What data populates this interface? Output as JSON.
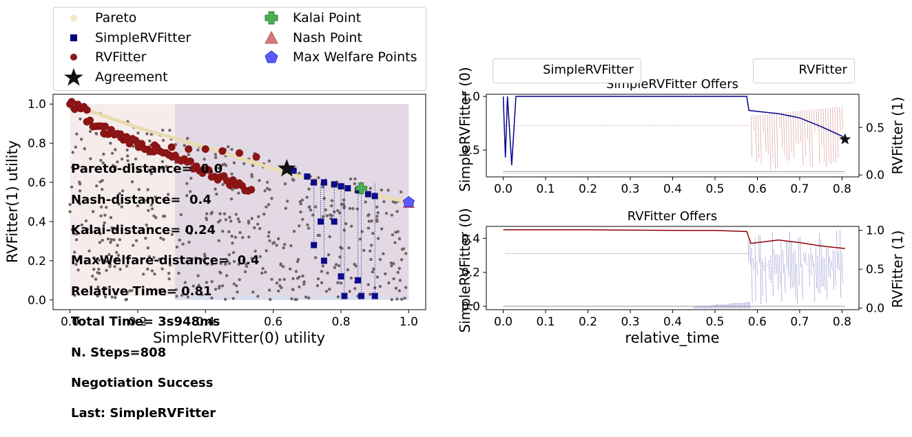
{
  "legend_main": {
    "items": [
      {
        "label": "Pareto",
        "color": "#f5e9c4",
        "marker": "circle"
      },
      {
        "label": "SimpleRVFitter",
        "color": "#000080",
        "marker": "square"
      },
      {
        "label": "RVFitter",
        "color": "#8b1a1a",
        "marker": "circle"
      },
      {
        "label": "Agreement",
        "color": "#111111",
        "marker": "star"
      },
      {
        "label": "Kalai Point",
        "color": "#4caf50",
        "marker": "plus"
      },
      {
        "label": "Nash Point",
        "color": "#cd6a6a",
        "marker": "triangle"
      },
      {
        "label": "Max Welfare Points",
        "color": "#4f4fff",
        "marker": "pentagon"
      }
    ]
  },
  "stats": {
    "pareto": "Pareto-distance=  0.0",
    "nash": "Nash-distance=  0.4",
    "kalai": "Kalai-distance= 0.24",
    "maxwelfare": "MaxWelfare-distance=  0.4",
    "reltime": "Relative Time= 0.81",
    "total": "Total Time= 3s948ms",
    "steps": "N. Steps=808",
    "result": "Negotiation Success",
    "last": "Last: SimpleRVFitter"
  },
  "right_legends": {
    "left": "SimpleRVFitter",
    "right": "RVFitter"
  },
  "chart_data": [
    {
      "type": "scatter",
      "title": "",
      "xlabel": "SimpleRVFitter(0) utility",
      "ylabel": "RVFitter(1) utility",
      "xlim": [
        -0.05,
        1.05
      ],
      "ylim": [
        -0.05,
        1.05
      ],
      "xticks": [
        "0.0",
        "0.2",
        "0.4",
        "0.6",
        "0.8",
        "1.0"
      ],
      "yticks": [
        "0.0",
        "0.2",
        "0.4",
        "0.6",
        "0.8",
        "1.0"
      ],
      "pareto_frontier": [
        [
          0.0,
          1.0
        ],
        [
          0.2,
          0.88
        ],
        [
          0.4,
          0.78
        ],
        [
          0.6,
          0.67
        ],
        [
          0.8,
          0.57
        ],
        [
          1.0,
          0.5
        ]
      ],
      "simple_offers": [
        [
          0.66,
          0.66
        ],
        [
          0.7,
          0.63
        ],
        [
          0.72,
          0.6
        ],
        [
          0.75,
          0.6
        ],
        [
          0.78,
          0.59
        ],
        [
          0.8,
          0.58
        ],
        [
          0.82,
          0.57
        ],
        [
          0.85,
          0.56
        ],
        [
          0.88,
          0.54
        ],
        [
          0.9,
          0.53
        ],
        [
          0.72,
          0.28
        ],
        [
          0.75,
          0.2
        ],
        [
          0.8,
          0.12
        ],
        [
          0.81,
          0.02
        ],
        [
          0.86,
          0.02
        ],
        [
          0.9,
          0.02
        ],
        [
          0.78,
          0.4
        ],
        [
          0.74,
          0.4
        ],
        [
          0.85,
          0.1
        ]
      ],
      "rv_offers": [
        [
          0.0,
          1.0
        ],
        [
          0.05,
          0.97
        ],
        [
          0.1,
          0.85
        ],
        [
          0.15,
          0.83
        ],
        [
          0.2,
          0.8
        ],
        [
          0.25,
          0.79
        ],
        [
          0.3,
          0.78
        ],
        [
          0.35,
          0.77
        ],
        [
          0.4,
          0.77
        ],
        [
          0.45,
          0.76
        ],
        [
          0.5,
          0.75
        ],
        [
          0.55,
          0.73
        ]
      ],
      "agreement": [
        0.64,
        0.67
      ],
      "kalai": [
        0.86,
        0.57
      ],
      "nash": [
        1.0,
        0.5
      ],
      "max_welfare": [
        1.0,
        0.5
      ]
    },
    {
      "type": "line",
      "title": "SimpleRVFitter Offers",
      "xlabel": "",
      "ylabel": "SimpleRVFitter (0)",
      "ylabel_right": "RVFitter (1)",
      "xlim": [
        -0.04,
        0.84
      ],
      "ylim": [
        0.25,
        1.02
      ],
      "ylim_right": [
        -0.02,
        0.85
      ],
      "xticks": [
        "0.0",
        "0.1",
        "0.2",
        "0.3",
        "0.4",
        "0.5",
        "0.6",
        "0.7",
        "0.8"
      ],
      "yticks": [
        "0.5",
        "1.0"
      ],
      "yticks_right": [
        "0.0",
        "0.5"
      ],
      "series": [
        {
          "name": "SimpleRVFitter",
          "x": [
            0.0,
            0.005,
            0.01,
            0.02,
            0.03,
            0.575,
            0.58,
            0.6,
            0.65,
            0.7,
            0.75,
            0.8,
            0.807
          ],
          "values": [
            1.0,
            0.43,
            1.0,
            0.36,
            1.0,
            1.0,
            0.87,
            0.86,
            0.84,
            0.8,
            0.72,
            0.63,
            0.6
          ]
        }
      ],
      "agreement": [
        0.807,
        0.6
      ]
    },
    {
      "type": "line",
      "title": "RVFitter Offers",
      "xlabel": "relative_time",
      "ylabel": "SimpleRVFitter (0)",
      "ylabel_right": "RVFitter (1)",
      "xlim": [
        -0.04,
        0.84
      ],
      "ylim": [
        -0.02,
        0.47
      ],
      "ylim_right": [
        -0.02,
        1.05
      ],
      "xticks": [
        "0.0",
        "0.1",
        "0.2",
        "0.3",
        "0.4",
        "0.5",
        "0.6",
        "0.7",
        "0.8"
      ],
      "yticks": [
        "0.0",
        "0.2",
        "0.4"
      ],
      "yticks_right": [
        "0.0",
        "0.5",
        "1.0"
      ],
      "series": [
        {
          "name": "RVFitter",
          "x": [
            0.0,
            0.1,
            0.2,
            0.3,
            0.4,
            0.5,
            0.575,
            0.585,
            0.6,
            0.65,
            0.7,
            0.75,
            0.807
          ],
          "values": [
            0.45,
            0.45,
            0.45,
            0.448,
            0.447,
            0.446,
            0.44,
            0.37,
            0.375,
            0.39,
            0.375,
            0.355,
            0.34
          ]
        }
      ]
    }
  ]
}
